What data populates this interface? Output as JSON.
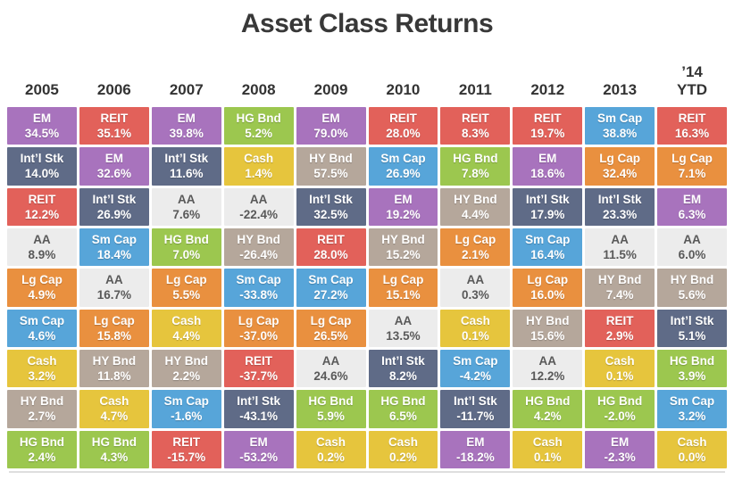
{
  "chart_data": {
    "type": "heatmap",
    "title": "Asset Class Returns",
    "columns": [
      "2005",
      "2006",
      "2007",
      "2008",
      "2009",
      "2010",
      "2011",
      "2012",
      "2013",
      "’14\nYTD"
    ],
    "value_format": "percent_one_decimal",
    "asset_styles": {
      "EM": {
        "bg": "#a873bd",
        "fg": "#ffffff"
      },
      "REIT": {
        "bg": "#e2615a",
        "fg": "#ffffff"
      },
      "Int’l Stk": {
        "bg": "#5f6b87",
        "fg": "#ffffff"
      },
      "HG Bnd": {
        "bg": "#9cc74f",
        "fg": "#ffffff"
      },
      "Cash": {
        "bg": "#e6c53d",
        "fg": "#ffffff"
      },
      "HY Bnd": {
        "bg": "#b5a79b",
        "fg": "#ffffff"
      },
      "Sm Cap": {
        "bg": "#57a5d9",
        "fg": "#ffffff"
      },
      "Lg Cap": {
        "bg": "#e9903f",
        "fg": "#ffffff"
      },
      "AA": {
        "bg": "#ececec",
        "fg": "#595959"
      }
    },
    "grid": [
      [
        [
          "EM",
          34.5
        ],
        [
          "REIT",
          35.1
        ],
        [
          "EM",
          39.8
        ],
        [
          "HG Bnd",
          5.2
        ],
        [
          "EM",
          79.0
        ],
        [
          "REIT",
          28.0
        ],
        [
          "REIT",
          8.3
        ],
        [
          "REIT",
          19.7
        ],
        [
          "Sm Cap",
          38.8
        ],
        [
          "REIT",
          16.3
        ]
      ],
      [
        [
          "Int’l Stk",
          14.0
        ],
        [
          "EM",
          32.6
        ],
        [
          "Int’l Stk",
          11.6
        ],
        [
          "Cash",
          1.4
        ],
        [
          "HY Bnd",
          57.5
        ],
        [
          "Sm Cap",
          26.9
        ],
        [
          "HG Bnd",
          7.8
        ],
        [
          "EM",
          18.6
        ],
        [
          "Lg Cap",
          32.4
        ],
        [
          "Lg Cap",
          7.1
        ]
      ],
      [
        [
          "REIT",
          12.2
        ],
        [
          "Int’l Stk",
          26.9
        ],
        [
          "AA",
          7.6
        ],
        [
          "AA",
          -22.4
        ],
        [
          "Int’l Stk",
          32.5
        ],
        [
          "EM",
          19.2
        ],
        [
          "HY Bnd",
          4.4
        ],
        [
          "Int’l Stk",
          17.9
        ],
        [
          "Int’l Stk",
          23.3
        ],
        [
          "EM",
          6.3
        ]
      ],
      [
        [
          "AA",
          8.9
        ],
        [
          "Sm Cap",
          18.4
        ],
        [
          "HG Bnd",
          7.0
        ],
        [
          "HY Bnd",
          -26.4
        ],
        [
          "REIT",
          28.0
        ],
        [
          "HY Bnd",
          15.2
        ],
        [
          "Lg Cap",
          2.1
        ],
        [
          "Sm Cap",
          16.4
        ],
        [
          "AA",
          11.5
        ],
        [
          "AA",
          6.0
        ]
      ],
      [
        [
          "Lg Cap",
          4.9
        ],
        [
          "AA",
          16.7
        ],
        [
          "Lg Cap",
          5.5
        ],
        [
          "Sm Cap",
          -33.8
        ],
        [
          "Sm Cap",
          27.2
        ],
        [
          "Lg Cap",
          15.1
        ],
        [
          "AA",
          0.3
        ],
        [
          "Lg Cap",
          16.0
        ],
        [
          "HY Bnd",
          7.4
        ],
        [
          "HY Bnd",
          5.6
        ]
      ],
      [
        [
          "Sm Cap",
          4.6
        ],
        [
          "Lg Cap",
          15.8
        ],
        [
          "Cash",
          4.4
        ],
        [
          "Lg Cap",
          -37.0
        ],
        [
          "Lg Cap",
          26.5
        ],
        [
          "AA",
          13.5
        ],
        [
          "Cash",
          0.1
        ],
        [
          "HY Bnd",
          15.6
        ],
        [
          "REIT",
          2.9
        ],
        [
          "Int’l Stk",
          5.1
        ]
      ],
      [
        [
          "Cash",
          3.2
        ],
        [
          "HY Bnd",
          11.8
        ],
        [
          "HY Bnd",
          2.2
        ],
        [
          "REIT",
          -37.7
        ],
        [
          "AA",
          24.6
        ],
        [
          "Int’l Stk",
          8.2
        ],
        [
          "Sm Cap",
          -4.2
        ],
        [
          "AA",
          12.2
        ],
        [
          "Cash",
          0.1
        ],
        [
          "HG Bnd",
          3.9
        ]
      ],
      [
        [
          "HY Bnd",
          2.7
        ],
        [
          "Cash",
          4.7
        ],
        [
          "Sm Cap",
          -1.6
        ],
        [
          "Int’l Stk",
          -43.1
        ],
        [
          "HG Bnd",
          5.9
        ],
        [
          "HG Bnd",
          6.5
        ],
        [
          "Int’l Stk",
          -11.7
        ],
        [
          "HG Bnd",
          4.2
        ],
        [
          "HG Bnd",
          -2.0
        ],
        [
          "Sm Cap",
          3.2
        ]
      ],
      [
        [
          "HG Bnd",
          2.4
        ],
        [
          "HG Bnd",
          4.3
        ],
        [
          "REIT",
          -15.7
        ],
        [
          "EM",
          -53.2
        ],
        [
          "Cash",
          0.2
        ],
        [
          "Cash",
          0.2
        ],
        [
          "EM",
          -18.2
        ],
        [
          "Cash",
          0.1
        ],
        [
          "EM",
          -2.3
        ],
        [
          "Cash",
          0.0
        ]
      ]
    ]
  }
}
